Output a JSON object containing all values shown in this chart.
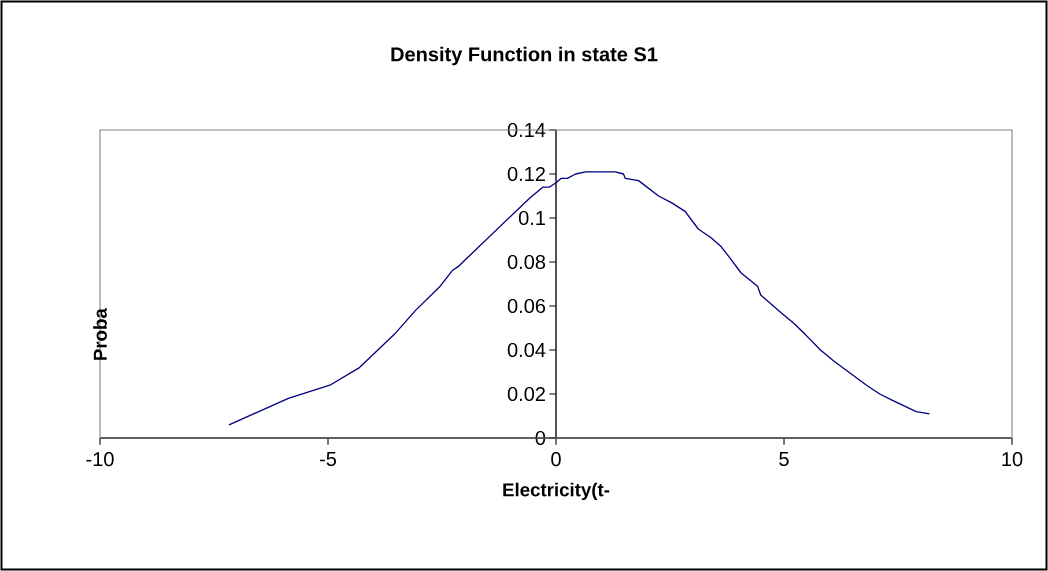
{
  "chart_data": {
    "type": "line",
    "title": "Density Function in state S1",
    "xlabel": "Electricity(t-",
    "ylabel": "Proba",
    "x": [
      -7.17,
      -5.87,
      -4.96,
      -4.31,
      -3.55,
      -3.08,
      -2.54,
      -2.28,
      -2.14,
      -1.99,
      -0.58,
      -0.29,
      -0.15,
      0.0,
      0.11,
      0.25,
      0.43,
      0.65,
      1.3,
      1.48,
      1.52,
      1.81,
      2.25,
      2.53,
      2.83,
      3.12,
      3.4,
      3.62,
      3.77,
      4.06,
      4.42,
      4.49,
      4.93,
      5.22,
      5.47,
      5.8,
      6.09,
      6.81,
      7.1,
      7.39,
      7.9,
      8.19
    ],
    "values": [
      0.006,
      0.018,
      0.024,
      0.032,
      0.047,
      0.058,
      0.069,
      0.076,
      0.078,
      0.081,
      0.109,
      0.114,
      0.114,
      0.116,
      0.118,
      0.118,
      0.12,
      0.121,
      0.121,
      0.12,
      0.118,
      0.117,
      0.11,
      0.107,
      0.103,
      0.095,
      0.091,
      0.087,
      0.083,
      0.075,
      0.069,
      0.065,
      0.057,
      0.052,
      0.047,
      0.04,
      0.035,
      0.024,
      0.02,
      0.017,
      0.012,
      0.011
    ],
    "color": "#000080",
    "line_style": "solid",
    "xlim": [
      -10,
      10
    ],
    "ylim": [
      0,
      0.14
    ],
    "xticks": [
      -10,
      -5,
      0,
      5,
      10
    ],
    "yticks": [
      0,
      0.02,
      0.04,
      0.06,
      0.08,
      0.1,
      0.12,
      0.14
    ]
  }
}
